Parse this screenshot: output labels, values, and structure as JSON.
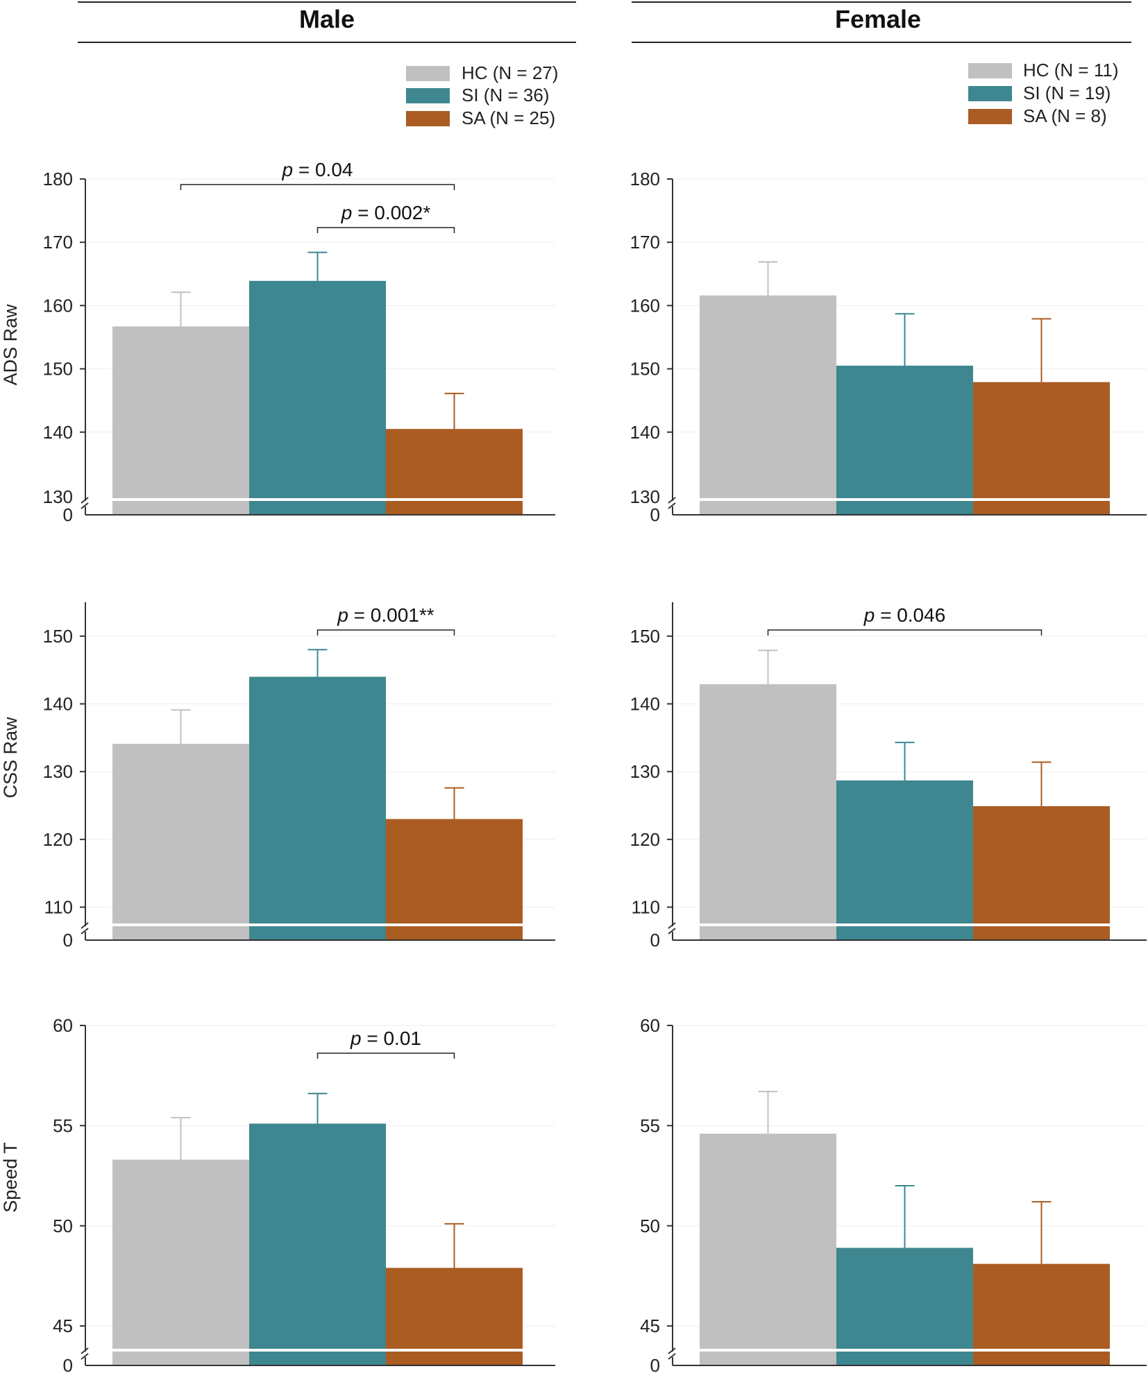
{
  "colors": {
    "HC": "#c0c0c0",
    "SI": "#3e8790",
    "SA": "#aa5c22",
    "axis": "#333333",
    "grid": "#eeeeee"
  },
  "columns": [
    {
      "title": "Male"
    },
    {
      "title": "Female"
    }
  ],
  "rows": [
    {
      "ylabel": "ADS Raw"
    },
    {
      "ylabel": "CSS Raw"
    },
    {
      "ylabel": "Speed T"
    }
  ],
  "legends": [
    {
      "items": [
        {
          "group": "HC",
          "label": "HC (N = 27)"
        },
        {
          "group": "SI",
          "label": "SI (N = 36)"
        },
        {
          "group": "SA",
          "label": "SA (N = 25)"
        }
      ]
    },
    {
      "items": [
        {
          "group": "HC",
          "label": "HC (N = 11)"
        },
        {
          "group": "SI",
          "label": "SI (N = 19)"
        },
        {
          "group": "SA",
          "label": "SA (N = 8)"
        }
      ]
    }
  ],
  "chart_data": [
    {
      "type": "bar",
      "sex": "Male",
      "ylabel": "ADS Raw",
      "categories": [
        "HC",
        "SI",
        "SA"
      ],
      "values": [
        156.7,
        163.9,
        140.5
      ],
      "error": [
        5.4,
        4.5,
        5.6
      ],
      "ylim": [
        130,
        180
      ],
      "axis_break": true,
      "yticks": [
        "0",
        "130",
        "140",
        "150",
        "160",
        "170",
        "180"
      ],
      "annotations": [
        {
          "from": "HC",
          "to": "SA",
          "pre": "p",
          "label": " = 0.04"
        },
        {
          "from": "SI",
          "to": "SA",
          "pre": "p",
          "label": " = 0.002*"
        }
      ]
    },
    {
      "type": "bar",
      "sex": "Female",
      "ylabel": "ADS Raw",
      "categories": [
        "HC",
        "SI",
        "SA"
      ],
      "values": [
        161.6,
        150.5,
        147.9
      ],
      "error": [
        5.3,
        8.2,
        10.0
      ],
      "ylim": [
        130,
        180
      ],
      "axis_break": true,
      "yticks": [
        "0",
        "130",
        "140",
        "150",
        "160",
        "170",
        "180"
      ],
      "annotations": []
    },
    {
      "type": "bar",
      "sex": "Male",
      "ylabel": "CSS Raw",
      "categories": [
        "HC",
        "SI",
        "SA"
      ],
      "values": [
        134.1,
        144.0,
        123.0
      ],
      "error": [
        5.0,
        4.0,
        4.6
      ],
      "ylim": [
        108,
        155
      ],
      "axis_break": true,
      "yticks": [
        "0",
        "110",
        "120",
        "130",
        "140",
        "150"
      ],
      "annotations": [
        {
          "from": "SI",
          "to": "SA",
          "pre": "p",
          "label": " = 0.001**"
        }
      ]
    },
    {
      "type": "bar",
      "sex": "Female",
      "ylabel": "CSS Raw",
      "categories": [
        "HC",
        "SI",
        "SA"
      ],
      "values": [
        142.9,
        128.7,
        124.9
      ],
      "error": [
        5.0,
        5.6,
        6.5
      ],
      "ylim": [
        108,
        155
      ],
      "axis_break": true,
      "yticks": [
        "0",
        "110",
        "120",
        "130",
        "140",
        "150"
      ],
      "annotations": [
        {
          "from": "HC",
          "to": "SA",
          "pre": "p",
          "label": " = 0.046"
        }
      ]
    },
    {
      "type": "bar",
      "sex": "Male",
      "ylabel": "Speed T",
      "categories": [
        "HC",
        "SI",
        "SA"
      ],
      "values": [
        53.3,
        55.1,
        47.9
      ],
      "error": [
        2.1,
        1.5,
        2.2
      ],
      "ylim": [
        44,
        60
      ],
      "axis_break": true,
      "yticks": [
        "0",
        "45",
        "50",
        "55",
        "60"
      ],
      "annotations": [
        {
          "from": "SI",
          "to": "SA",
          "pre": "p",
          "label": " = 0.01"
        }
      ]
    },
    {
      "type": "bar",
      "sex": "Female",
      "ylabel": "Speed T",
      "categories": [
        "HC",
        "SI",
        "SA"
      ],
      "values": [
        54.6,
        48.9,
        48.1
      ],
      "error": [
        2.1,
        3.1,
        3.1
      ],
      "ylim": [
        44,
        60
      ],
      "axis_break": true,
      "yticks": [
        "0",
        "45",
        "50",
        "55",
        "60"
      ],
      "annotations": []
    }
  ]
}
